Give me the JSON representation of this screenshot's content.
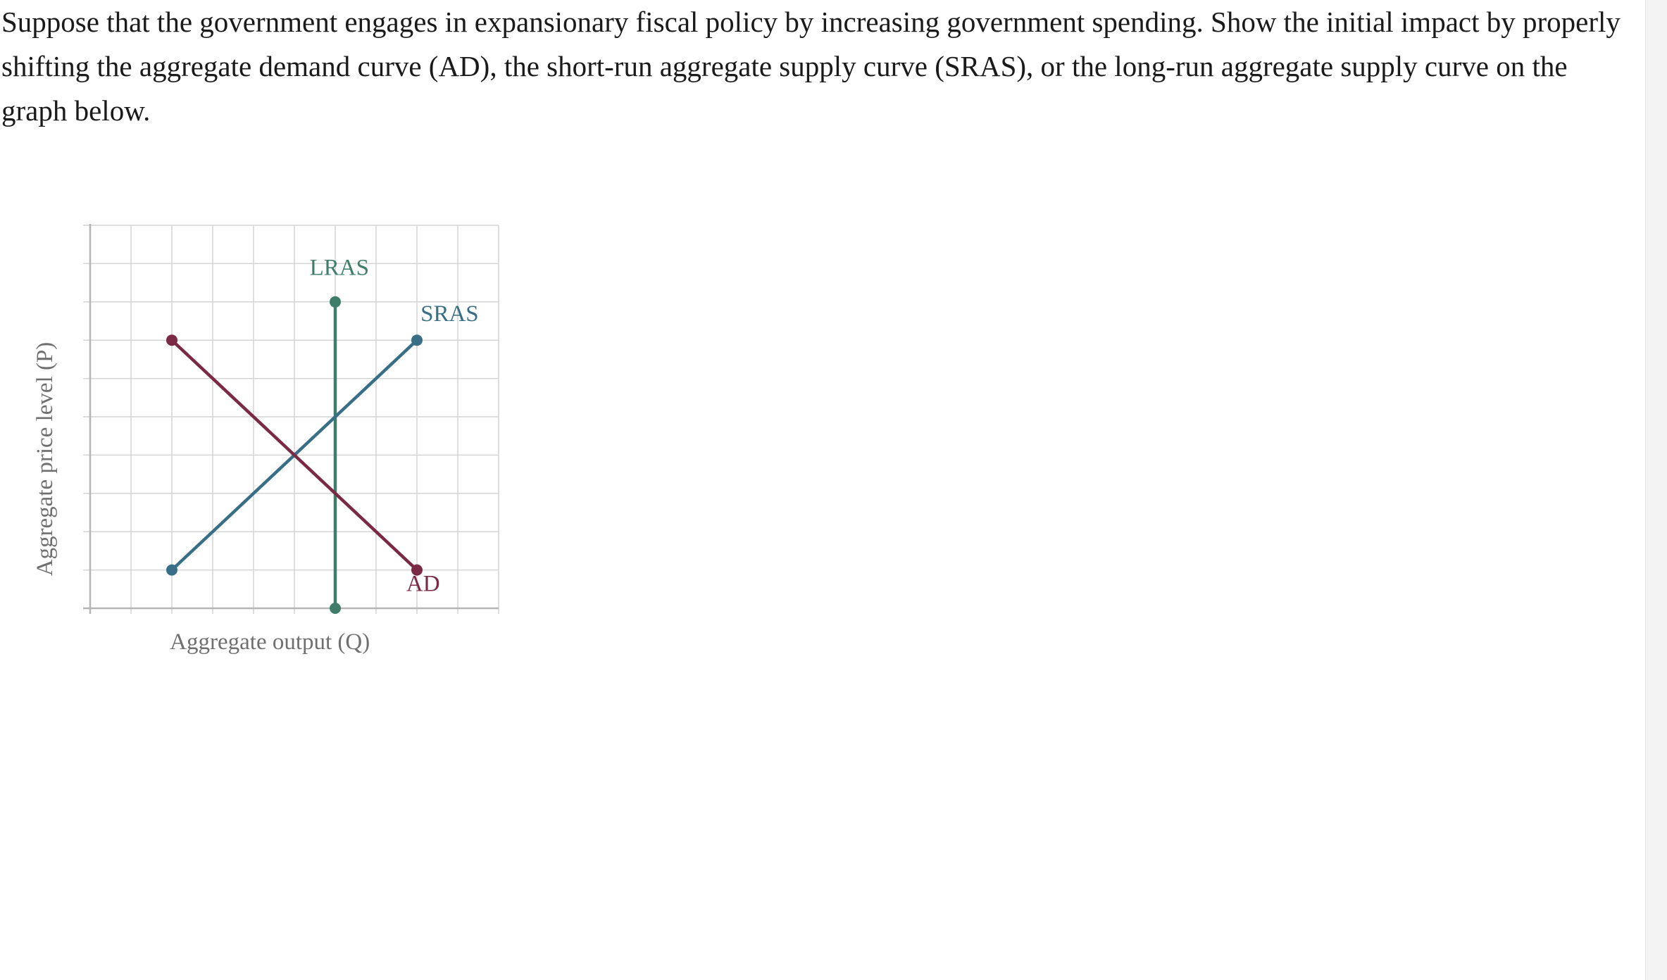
{
  "question": {
    "text": "Suppose that the government engages in expansionary fiscal policy by increasing government spending. Show the initial impact by properly shifting the aggregate demand curve (AD), the short-run aggregate supply curve (SRAS), or the long-run aggregate supply curve on the graph below."
  },
  "graph": {
    "xlabel": "Aggregate output (Q)",
    "ylabel": "Aggregate price level (P)",
    "grid": true,
    "x_range": [
      0,
      10
    ],
    "y_range": [
      0,
      10
    ],
    "colors": {
      "grid": "#d4d4d4",
      "axis": "#b5b5b5",
      "lras": "#3e7d6a",
      "sras": "#386f86",
      "ad": "#7a2a45"
    },
    "curves": [
      {
        "id": "lras",
        "label": "LRAS",
        "color": "#3e7d6a",
        "points": [
          [
            6,
            8
          ],
          [
            6,
            0
          ]
        ],
        "label_at": [
          6.1,
          8.7
        ],
        "draggable": true
      },
      {
        "id": "sras",
        "label": "SRAS",
        "color": "#386f86",
        "points": [
          [
            2,
            1
          ],
          [
            8,
            7
          ]
        ],
        "label_at": [
          8.8,
          7.5
        ],
        "draggable": true
      },
      {
        "id": "ad",
        "label": "AD",
        "color": "#7a2a45",
        "points": [
          [
            2,
            7
          ],
          [
            8,
            1
          ]
        ],
        "label_at": [
          8.15,
          0.45
        ],
        "draggable": true
      }
    ]
  }
}
